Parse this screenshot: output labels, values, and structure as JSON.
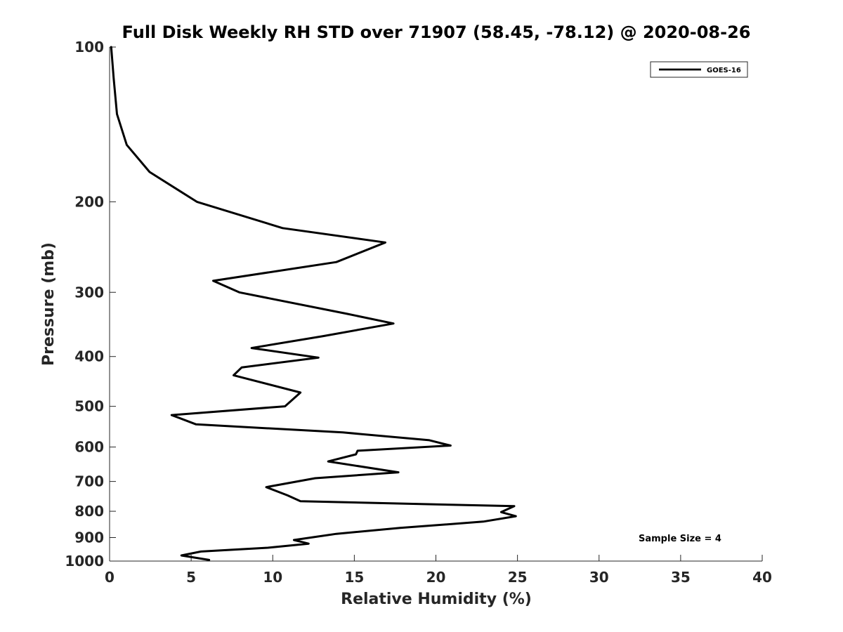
{
  "chart_data": {
    "type": "line",
    "title": "Full Disk Weekly RH STD over 71907 (58.45, -78.12) @ 2020-08-26",
    "xlabel": "Relative Humidity (%)",
    "ylabel": "Pressure (mb)",
    "xlim": [
      0,
      40
    ],
    "ylim": [
      100,
      1000
    ],
    "yscale": "log",
    "y_reversed": true,
    "xticks": [
      0,
      5,
      10,
      15,
      20,
      25,
      30,
      35,
      40
    ],
    "yticks": [
      100,
      200,
      300,
      400,
      500,
      600,
      700,
      800,
      900,
      1000
    ],
    "grid": false,
    "legend_position": "top-right",
    "annotation": "Sample Size = 4",
    "series": [
      {
        "name": "GOES-16",
        "color": "#000000",
        "x": [
          0.1,
          0.25,
          0.45,
          1.05,
          2.45,
          5.35,
          10.6,
          16.9,
          13.9,
          6.35,
          7.95,
          14.5,
          17.4,
          13.1,
          8.7,
          12.8,
          8.1,
          7.6,
          11.7,
          10.75,
          3.8,
          5.3,
          14.3,
          19.6,
          20.9,
          15.2,
          15.1,
          13.4,
          17.7,
          12.6,
          9.6,
          10.9,
          11.7,
          24.8,
          24.0,
          24.9,
          22.9,
          17.8,
          13.9,
          11.3,
          12.2,
          9.7,
          5.6,
          4.4,
          6.1
        ],
        "y": [
          100,
          115,
          135,
          155,
          175,
          200,
          225,
          240,
          262,
          285,
          300,
          330,
          345,
          365,
          385,
          402,
          420,
          435,
          470,
          500,
          520,
          542,
          562,
          582,
          596,
          610,
          620,
          640,
          672,
          690,
          718,
          745,
          765,
          782,
          803,
          818,
          838,
          862,
          885,
          910,
          925,
          942,
          958,
          975,
          995
        ]
      }
    ]
  }
}
